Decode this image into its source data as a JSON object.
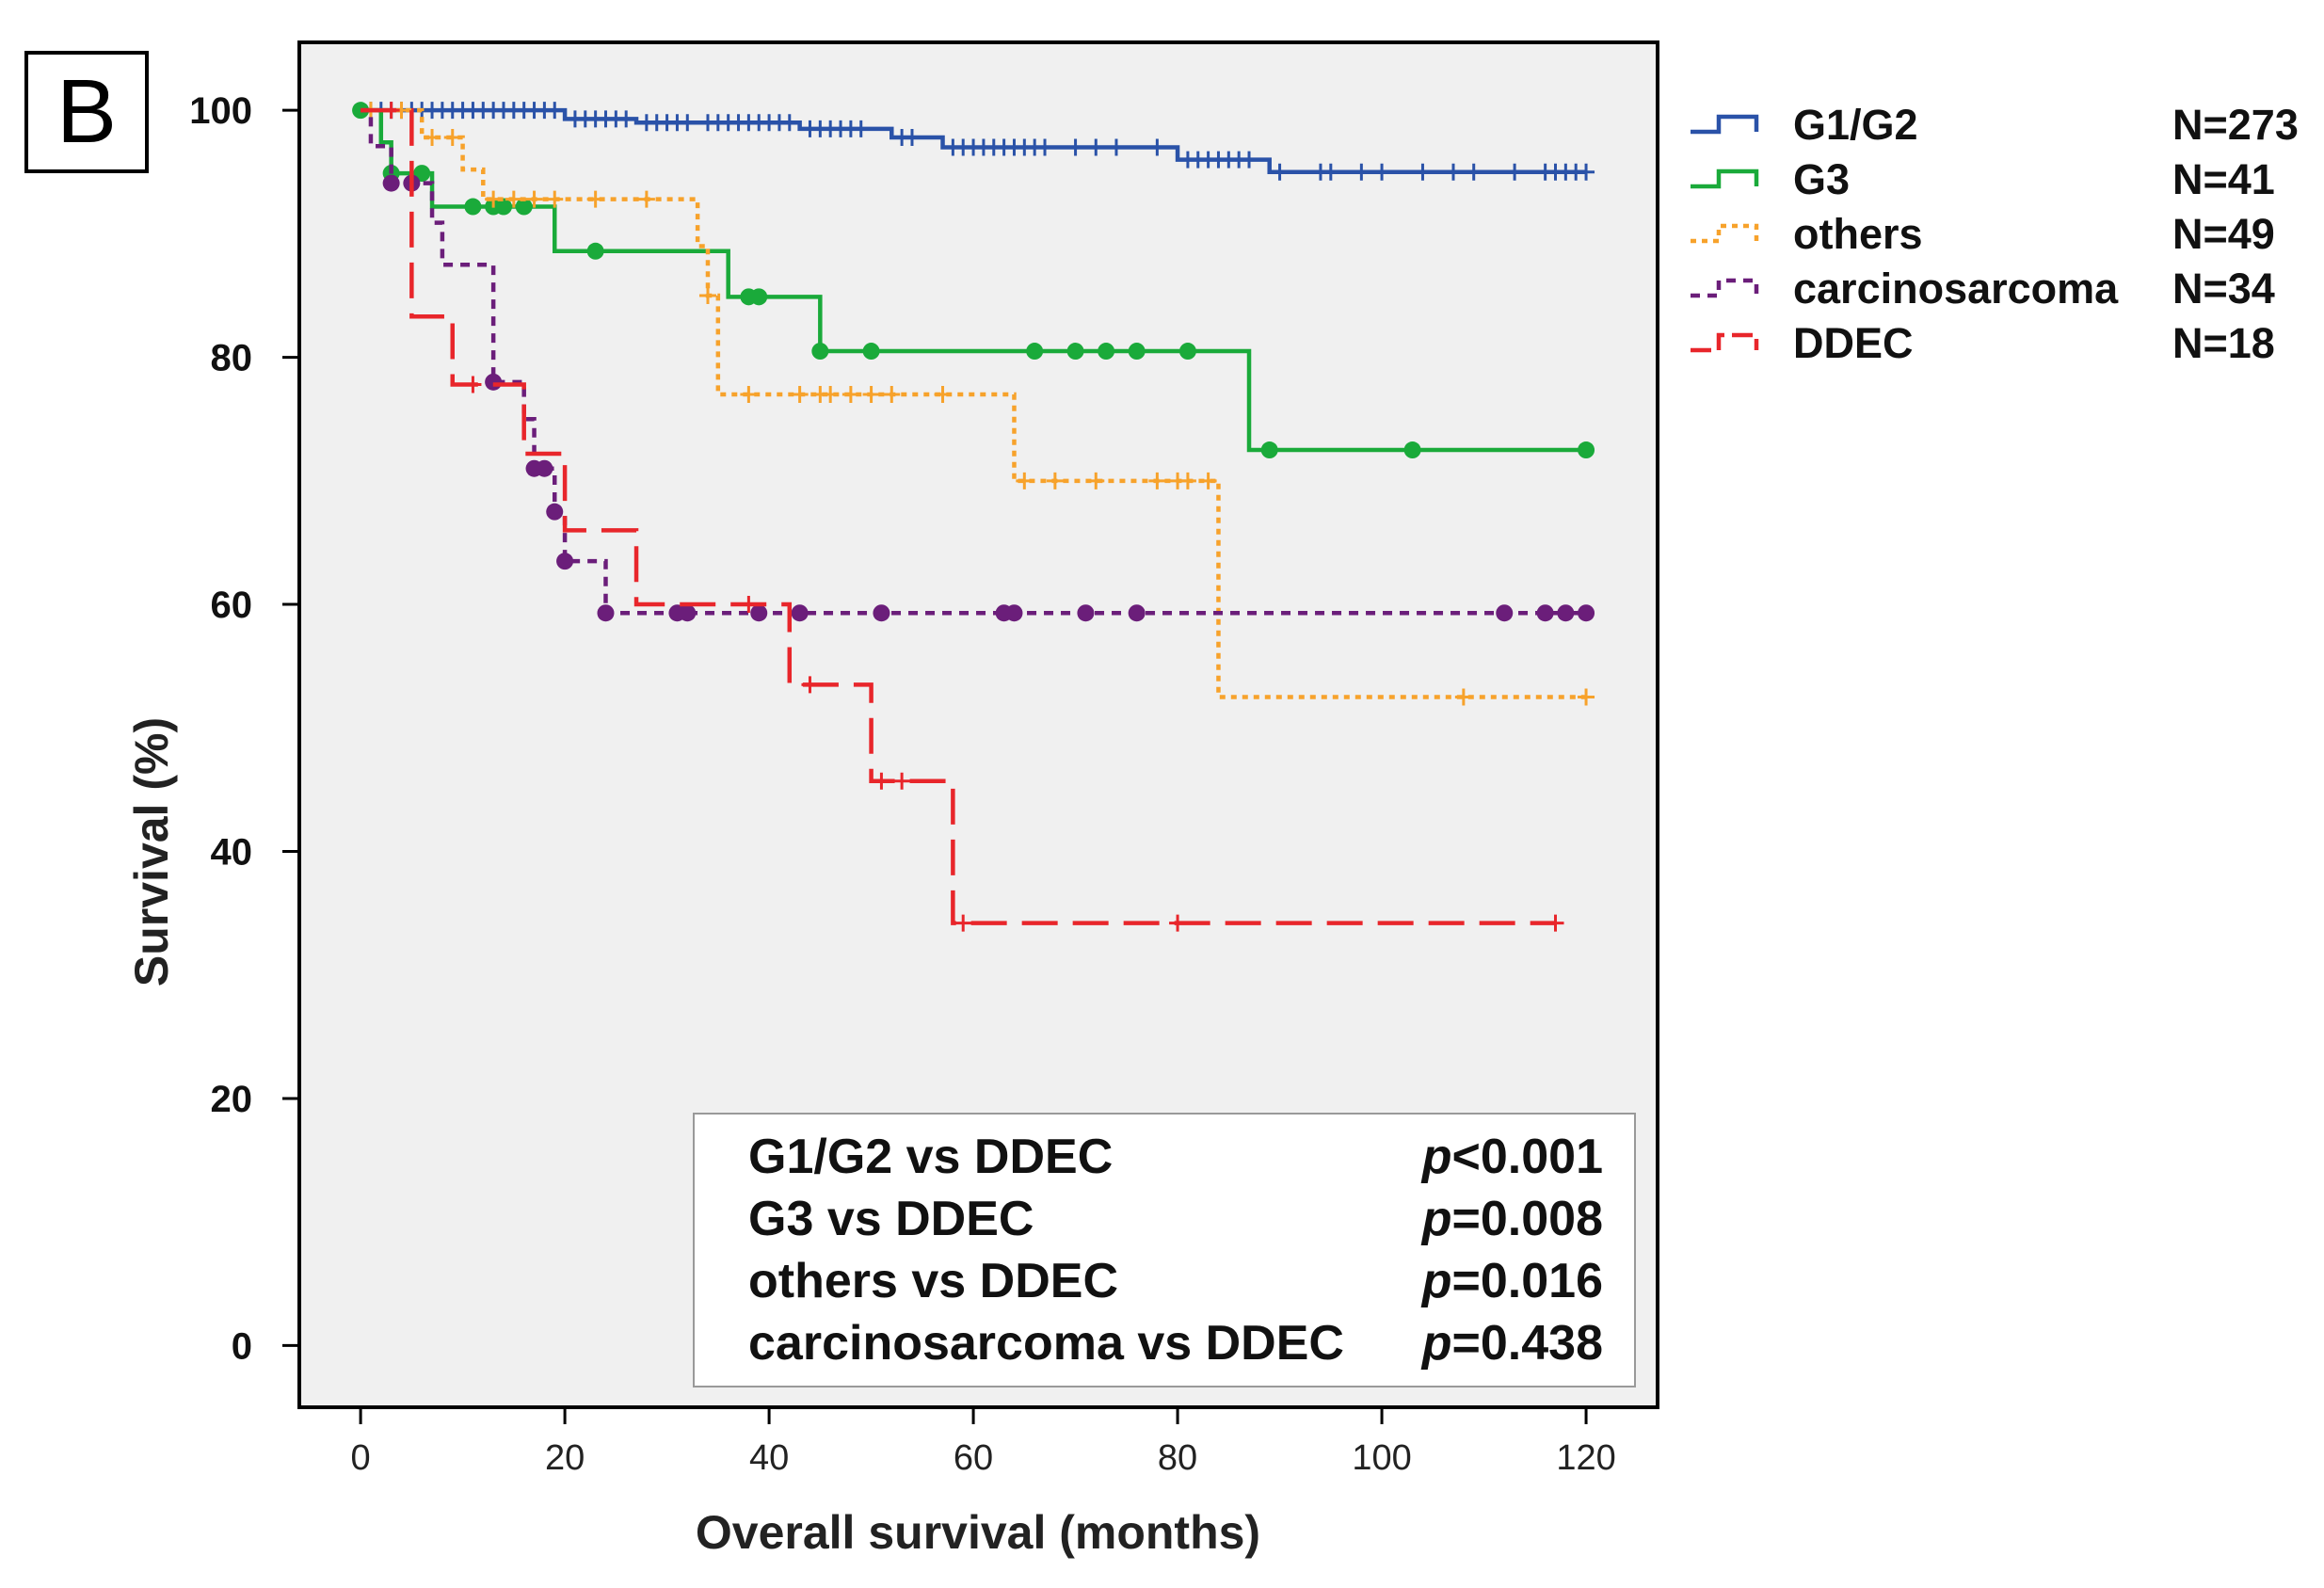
{
  "panel_label": "B",
  "chart_data": {
    "type": "line",
    "subtype": "kaplan-meier",
    "xlabel": "Overall survival (months)",
    "ylabel": "Survival (%)",
    "xlim": [
      -6,
      127
    ],
    "ylim": [
      -5,
      105.5
    ],
    "xticks": [
      0,
      20,
      40,
      60,
      80,
      100,
      120
    ],
    "yticks": [
      0,
      20,
      40,
      60,
      80,
      100
    ],
    "grid": false,
    "background": "#f0f0f0",
    "legend_position": "right, outside plot",
    "series": [
      {
        "name": "G1/G2",
        "n_label": "N=273",
        "color": "#2a52a8",
        "dash": "solid",
        "marker": "plus",
        "steps": [
          [
            0,
            100
          ],
          [
            20,
            99.3
          ],
          [
            27,
            99.0
          ],
          [
            43,
            98.5
          ],
          [
            52,
            97.8
          ],
          [
            57,
            97.0
          ],
          [
            80,
            96.0
          ],
          [
            89,
            95.0
          ],
          [
            120,
            95.0
          ]
        ],
        "censored": [
          [
            1,
            100
          ],
          [
            2,
            100
          ],
          [
            3,
            100
          ],
          [
            4,
            100
          ],
          [
            5,
            100
          ],
          [
            6,
            100
          ],
          [
            7,
            100
          ],
          [
            8,
            100
          ],
          [
            9,
            100
          ],
          [
            10,
            100
          ],
          [
            11,
            100
          ],
          [
            12,
            100
          ],
          [
            13,
            100
          ],
          [
            14,
            100
          ],
          [
            15,
            100
          ],
          [
            16,
            100
          ],
          [
            17,
            100
          ],
          [
            18,
            100
          ],
          [
            19,
            100
          ],
          [
            21,
            99.3
          ],
          [
            22,
            99.3
          ],
          [
            23,
            99.3
          ],
          [
            24,
            99.3
          ],
          [
            25,
            99.3
          ],
          [
            26,
            99.3
          ],
          [
            28,
            99.0
          ],
          [
            29,
            99.0
          ],
          [
            30,
            99.0
          ],
          [
            31,
            99.0
          ],
          [
            32,
            99.0
          ],
          [
            34,
            99.0
          ],
          [
            35,
            99.0
          ],
          [
            36,
            99.0
          ],
          [
            37,
            99.0
          ],
          [
            38,
            99.0
          ],
          [
            39,
            99.0
          ],
          [
            40,
            99.0
          ],
          [
            41,
            99.0
          ],
          [
            42,
            99.0
          ],
          [
            44,
            98.5
          ],
          [
            45,
            98.5
          ],
          [
            46,
            98.5
          ],
          [
            47,
            98.5
          ],
          [
            48,
            98.5
          ],
          [
            49,
            98.5
          ],
          [
            53,
            97.8
          ],
          [
            54,
            97.8
          ],
          [
            58,
            97.0
          ],
          [
            59,
            97.0
          ],
          [
            60,
            97.0
          ],
          [
            61,
            97.0
          ],
          [
            62,
            97.0
          ],
          [
            63,
            97.0
          ],
          [
            64,
            97.0
          ],
          [
            65,
            97.0
          ],
          [
            66,
            97.0
          ],
          [
            67,
            97.0
          ],
          [
            70,
            97.0
          ],
          [
            72,
            97.0
          ],
          [
            74,
            97.0
          ],
          [
            78,
            97.0
          ],
          [
            81,
            96.0
          ],
          [
            82,
            96.0
          ],
          [
            83,
            96.0
          ],
          [
            84,
            96.0
          ],
          [
            85,
            96.0
          ],
          [
            86,
            96.0
          ],
          [
            87,
            96.0
          ],
          [
            90,
            95.0
          ],
          [
            94,
            95.0
          ],
          [
            95,
            95.0
          ],
          [
            98,
            95.0
          ],
          [
            100,
            95.0
          ],
          [
            104,
            95.0
          ],
          [
            107,
            95.0
          ],
          [
            109,
            95.0
          ],
          [
            113,
            95.0
          ],
          [
            116,
            95.0
          ],
          [
            117,
            95.0
          ],
          [
            118,
            95.0
          ],
          [
            119,
            95.0
          ],
          [
            120,
            95.0
          ]
        ]
      },
      {
        "name": "G3",
        "n_label": "N=41",
        "color": "#1aaa3a",
        "dash": "solid",
        "marker": "dot",
        "steps": [
          [
            0,
            100
          ],
          [
            2,
            97.4
          ],
          [
            3,
            94.9
          ],
          [
            7,
            92.2
          ],
          [
            19,
            88.6
          ],
          [
            36,
            84.9
          ],
          [
            45,
            80.5
          ],
          [
            87,
            72.5
          ],
          [
            120,
            72.5
          ]
        ],
        "censored": [
          [
            0,
            100
          ],
          [
            3,
            94.9
          ],
          [
            6,
            94.9
          ],
          [
            11,
            92.2
          ],
          [
            13,
            92.2
          ],
          [
            14,
            92.2
          ],
          [
            16,
            92.2
          ],
          [
            23,
            88.6
          ],
          [
            38,
            84.9
          ],
          [
            39,
            84.9
          ],
          [
            45,
            80.5
          ],
          [
            50,
            80.5
          ],
          [
            66,
            80.5
          ],
          [
            70,
            80.5
          ],
          [
            73,
            80.5
          ],
          [
            76,
            80.5
          ],
          [
            81,
            80.5
          ],
          [
            89,
            72.5
          ],
          [
            103,
            72.5
          ],
          [
            120,
            72.5
          ]
        ]
      },
      {
        "name": "others",
        "n_label": "N=49",
        "color": "#f7a22b",
        "dash": "dotted",
        "marker": "plus",
        "steps": [
          [
            0,
            100
          ],
          [
            6,
            97.8
          ],
          [
            10,
            95.2
          ],
          [
            12,
            92.8
          ],
          [
            33,
            89.0
          ],
          [
            34,
            85.0
          ],
          [
            35,
            77.0
          ],
          [
            64,
            70.0
          ],
          [
            84,
            52.5
          ],
          [
            120,
            52.5
          ]
        ],
        "censored": [
          [
            1,
            100
          ],
          [
            4,
            100
          ],
          [
            7,
            97.8
          ],
          [
            9,
            97.8
          ],
          [
            13,
            92.8
          ],
          [
            15,
            92.8
          ],
          [
            17,
            92.8
          ],
          [
            19,
            92.8
          ],
          [
            23,
            92.8
          ],
          [
            28,
            92.8
          ],
          [
            34,
            85.0
          ],
          [
            38,
            77.0
          ],
          [
            43,
            77.0
          ],
          [
            45,
            77.0
          ],
          [
            46,
            77.0
          ],
          [
            48,
            77.0
          ],
          [
            50,
            77.0
          ],
          [
            52,
            77.0
          ],
          [
            57,
            77.0
          ],
          [
            65,
            70.0
          ],
          [
            68,
            70.0
          ],
          [
            72,
            70.0
          ],
          [
            78,
            70.0
          ],
          [
            80,
            70.0
          ],
          [
            81,
            70.0
          ],
          [
            83,
            70.0
          ],
          [
            108,
            52.5
          ],
          [
            120,
            52.5
          ]
        ]
      },
      {
        "name": "carcinosarcoma",
        "n_label": "N=34",
        "color": "#6b1e7a",
        "dash": "short-dash",
        "marker": "dot",
        "steps": [
          [
            0,
            100
          ],
          [
            1,
            97.1
          ],
          [
            3,
            94.1
          ],
          [
            7,
            90.9
          ],
          [
            8,
            87.5
          ],
          [
            13,
            78.0
          ],
          [
            16,
            75.0
          ],
          [
            17,
            71.0
          ],
          [
            19,
            67.5
          ],
          [
            20,
            63.5
          ],
          [
            24,
            59.3
          ],
          [
            120,
            59.3
          ]
        ],
        "censored": [
          [
            3,
            94.1
          ],
          [
            5,
            94.1
          ],
          [
            13,
            78.0
          ],
          [
            17,
            71.0
          ],
          [
            18,
            71.0
          ],
          [
            19,
            67.5
          ],
          [
            20,
            63.5
          ],
          [
            24,
            59.3
          ],
          [
            31,
            59.3
          ],
          [
            32,
            59.3
          ],
          [
            39,
            59.3
          ],
          [
            43,
            59.3
          ],
          [
            51,
            59.3
          ],
          [
            63,
            59.3
          ],
          [
            64,
            59.3
          ],
          [
            71,
            59.3
          ],
          [
            76,
            59.3
          ],
          [
            112,
            59.3
          ],
          [
            116,
            59.3
          ],
          [
            118,
            59.3
          ],
          [
            120,
            59.3
          ]
        ]
      },
      {
        "name": "DDEC",
        "n_label": "N=18",
        "color": "#e8262b",
        "dash": "long-dash",
        "marker": "plus",
        "steps": [
          [
            0,
            100
          ],
          [
            5,
            83.3
          ],
          [
            9,
            77.8
          ],
          [
            16,
            72.2
          ],
          [
            20,
            66.0
          ],
          [
            27,
            60.0
          ],
          [
            42,
            53.5
          ],
          [
            50,
            45.7
          ],
          [
            58,
            34.2
          ],
          [
            117,
            34.2
          ]
        ],
        "censored": [
          [
            3,
            100
          ],
          [
            11,
            77.8
          ],
          [
            38,
            60.0
          ],
          [
            44,
            53.5
          ],
          [
            51,
            45.7
          ],
          [
            53,
            45.7
          ],
          [
            59,
            34.2
          ],
          [
            80,
            34.2
          ],
          [
            117,
            34.2
          ]
        ]
      }
    ],
    "annotations": {
      "comparisons": [
        {
          "label": "G1/G2 vs DDEC",
          "p_letter": "p",
          "p_value": "<0.001"
        },
        {
          "label": "G3 vs DDEC",
          "p_letter": "p",
          "p_value": "=0.008"
        },
        {
          "label": "others vs DDEC",
          "p_letter": "p",
          "p_value": "=0.016"
        },
        {
          "label": "carcinosarcoma vs DDEC",
          "p_letter": "p",
          "p_value": "=0.438"
        }
      ]
    }
  }
}
